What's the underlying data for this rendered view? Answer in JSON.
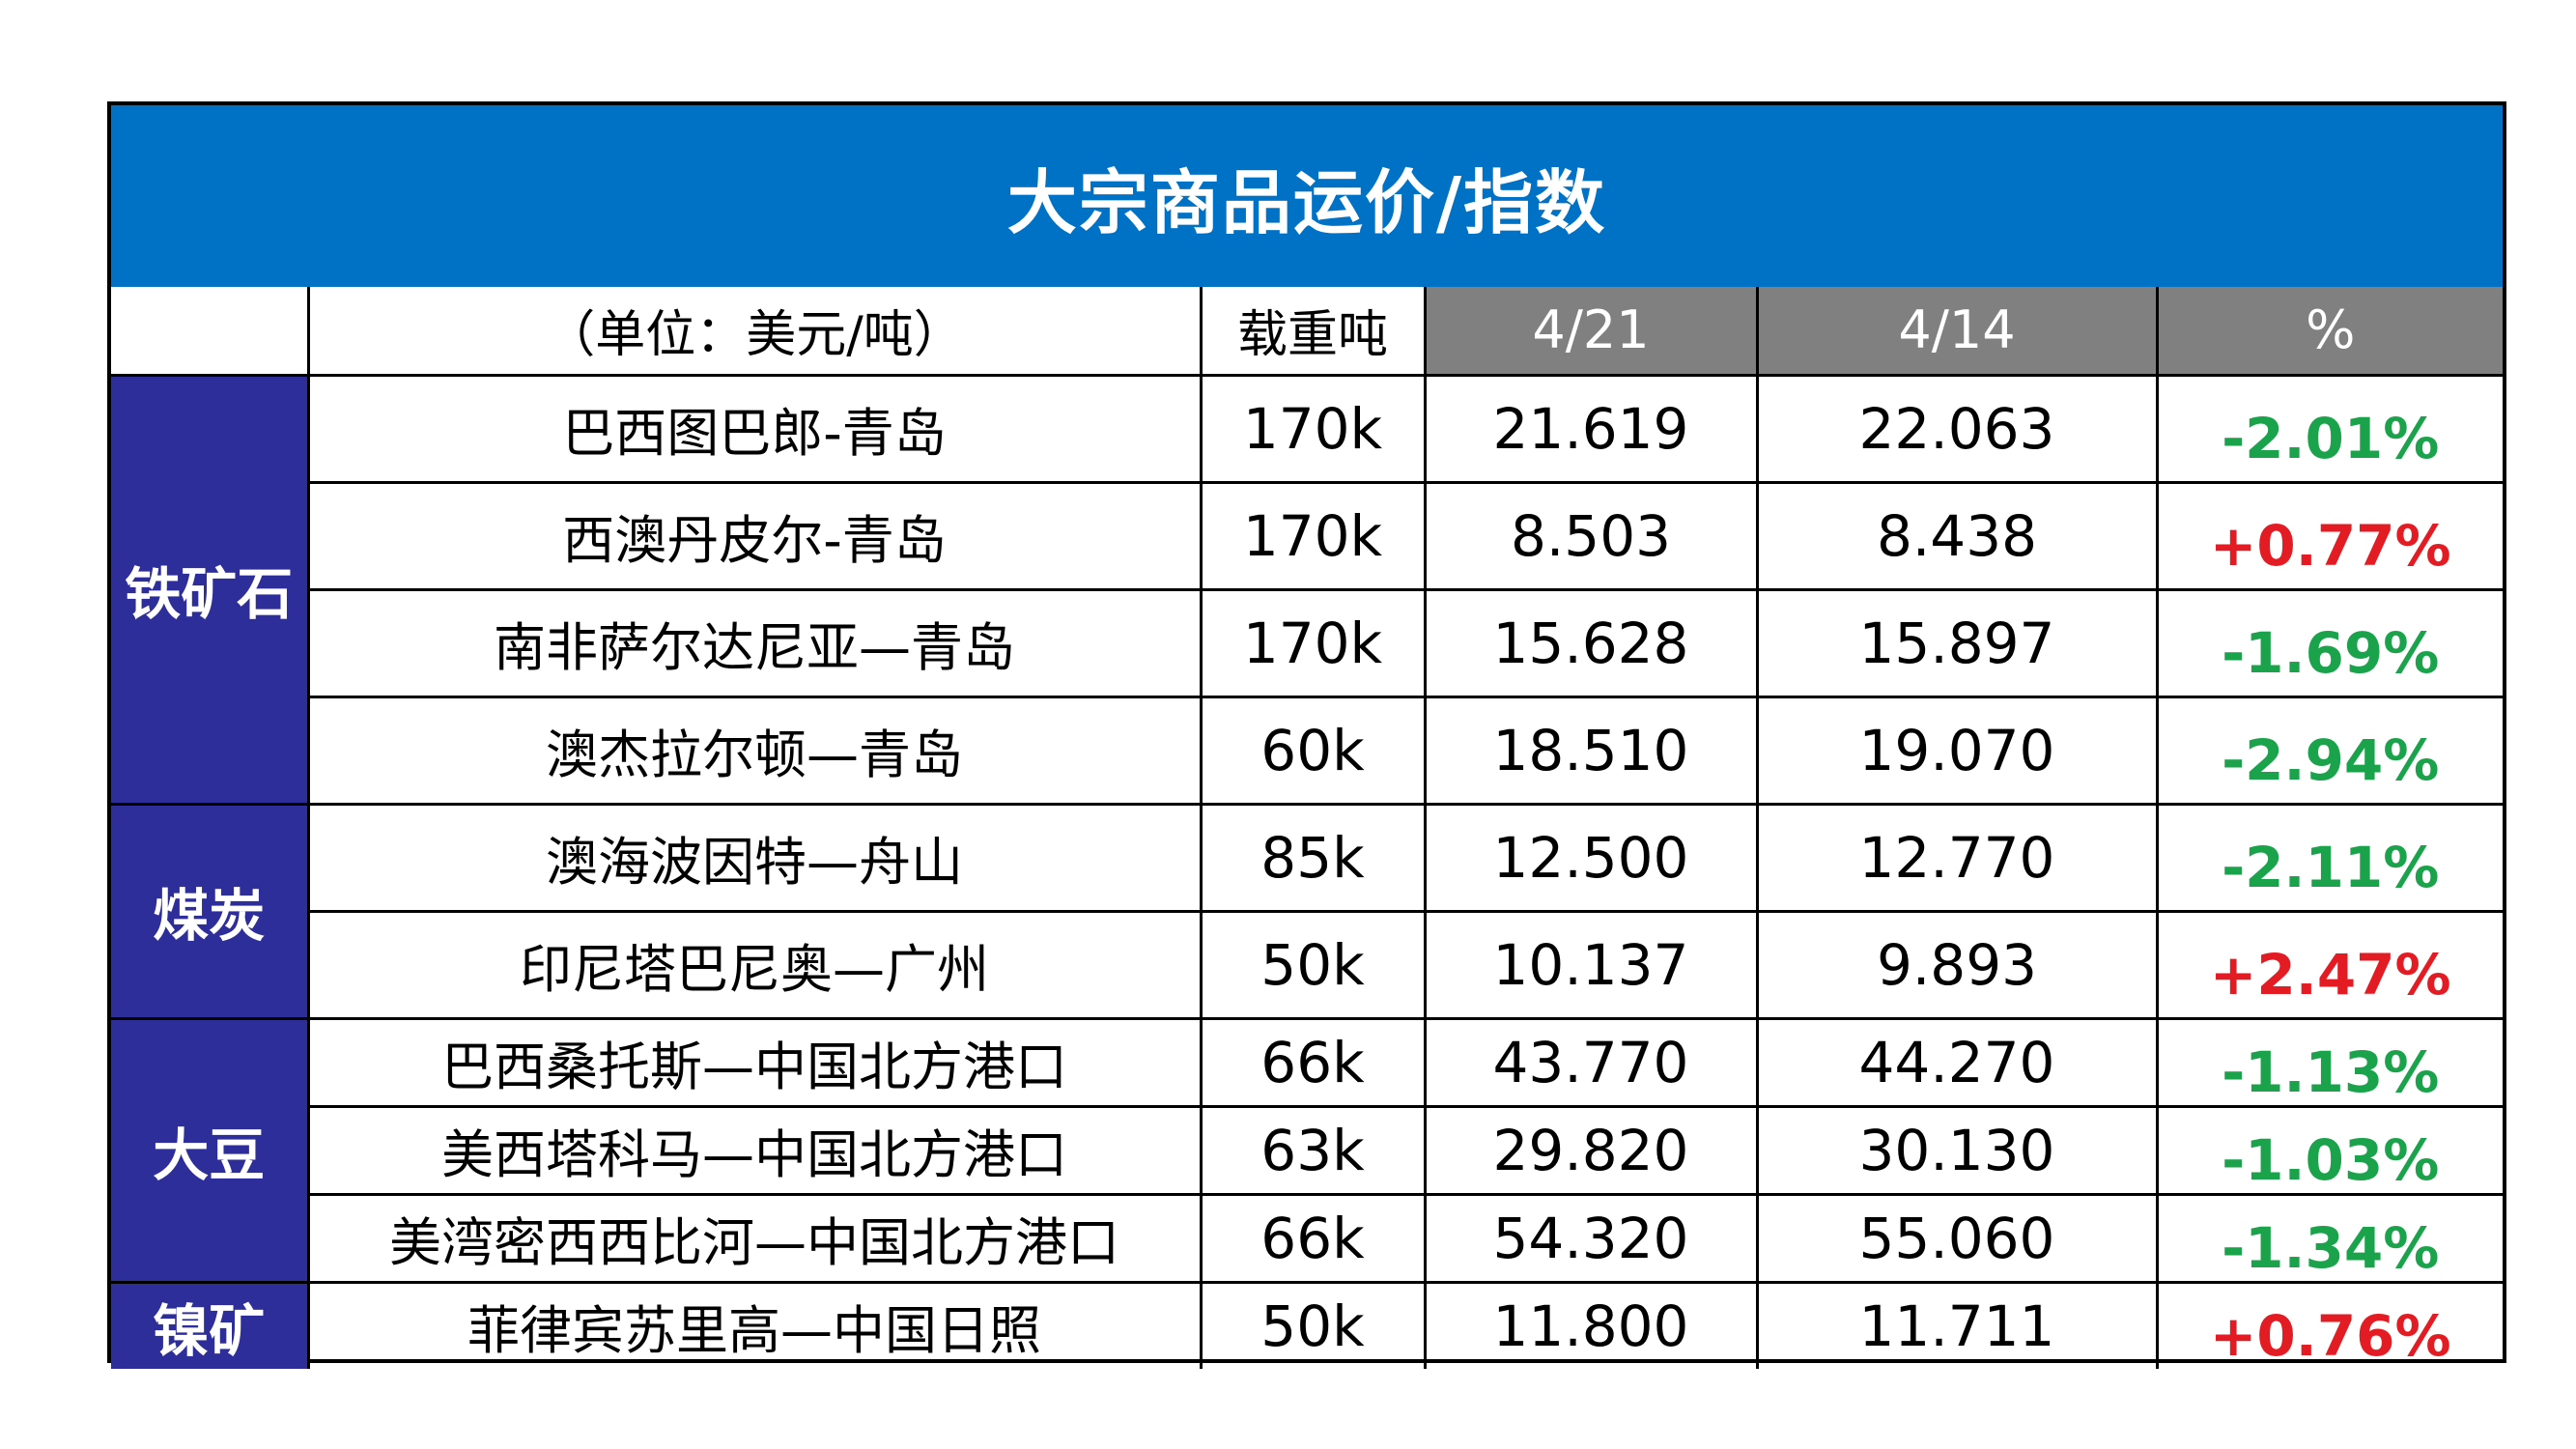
{
  "title": "大宗商品运价/指数",
  "header": {
    "unit": "（单位：美元/吨）",
    "dwt": "载重吨",
    "date1": "4/21",
    "date2": "4/14",
    "pct": "%"
  },
  "colors": {
    "title_bg": "#0072c6",
    "category_bg": "#2e2e9a",
    "header_gray": "#808080",
    "negative": "#1aa34a",
    "positive": "#e31b23"
  },
  "groups": [
    {
      "category": "铁矿石",
      "rows": [
        {
          "route": "巴西图巴郎-青岛",
          "dwt": "170k",
          "v1": "21.619",
          "v2": "22.063",
          "pct": "-2.01%",
          "dir": "down"
        },
        {
          "route": "西澳丹皮尔-青岛",
          "dwt": "170k",
          "v1": "8.503",
          "v2": "8.438",
          "pct": "+0.77%",
          "dir": "up"
        },
        {
          "route": "南非萨尔达尼亚—青岛",
          "dwt": "170k",
          "v1": "15.628",
          "v2": "15.897",
          "pct": "-1.69%",
          "dir": "down"
        },
        {
          "route": "澳杰拉尔顿—青岛",
          "dwt": "60k",
          "v1": "18.510",
          "v2": "19.070",
          "pct": "-2.94%",
          "dir": "down"
        }
      ]
    },
    {
      "category": "煤炭",
      "rows": [
        {
          "route": "澳海波因特—舟山",
          "dwt": "85k",
          "v1": "12.500",
          "v2": "12.770",
          "pct": "-2.11%",
          "dir": "down"
        },
        {
          "route": "印尼塔巴尼奥—广州",
          "dwt": "50k",
          "v1": "10.137",
          "v2": "9.893",
          "pct": "+2.47%",
          "dir": "up"
        }
      ]
    },
    {
      "category": "大豆",
      "rows": [
        {
          "route": "巴西桑托斯—中国北方港口",
          "dwt": "66k",
          "v1": "43.770",
          "v2": "44.270",
          "pct": "-1.13%",
          "dir": "down"
        },
        {
          "route": "美西塔科马—中国北方港口",
          "dwt": "63k",
          "v1": "29.820",
          "v2": "30.130",
          "pct": "-1.03%",
          "dir": "down"
        },
        {
          "route": "美湾密西西比河—中国北方港口",
          "dwt": "66k",
          "v1": "54.320",
          "v2": "55.060",
          "pct": "-1.34%",
          "dir": "down"
        }
      ]
    },
    {
      "category": "镍矿",
      "rows": [
        {
          "route": "菲律宾苏里高—中国日照",
          "dwt": "50k",
          "v1": "11.800",
          "v2": "11.711",
          "pct": "+0.76%",
          "dir": "up"
        }
      ]
    }
  ]
}
